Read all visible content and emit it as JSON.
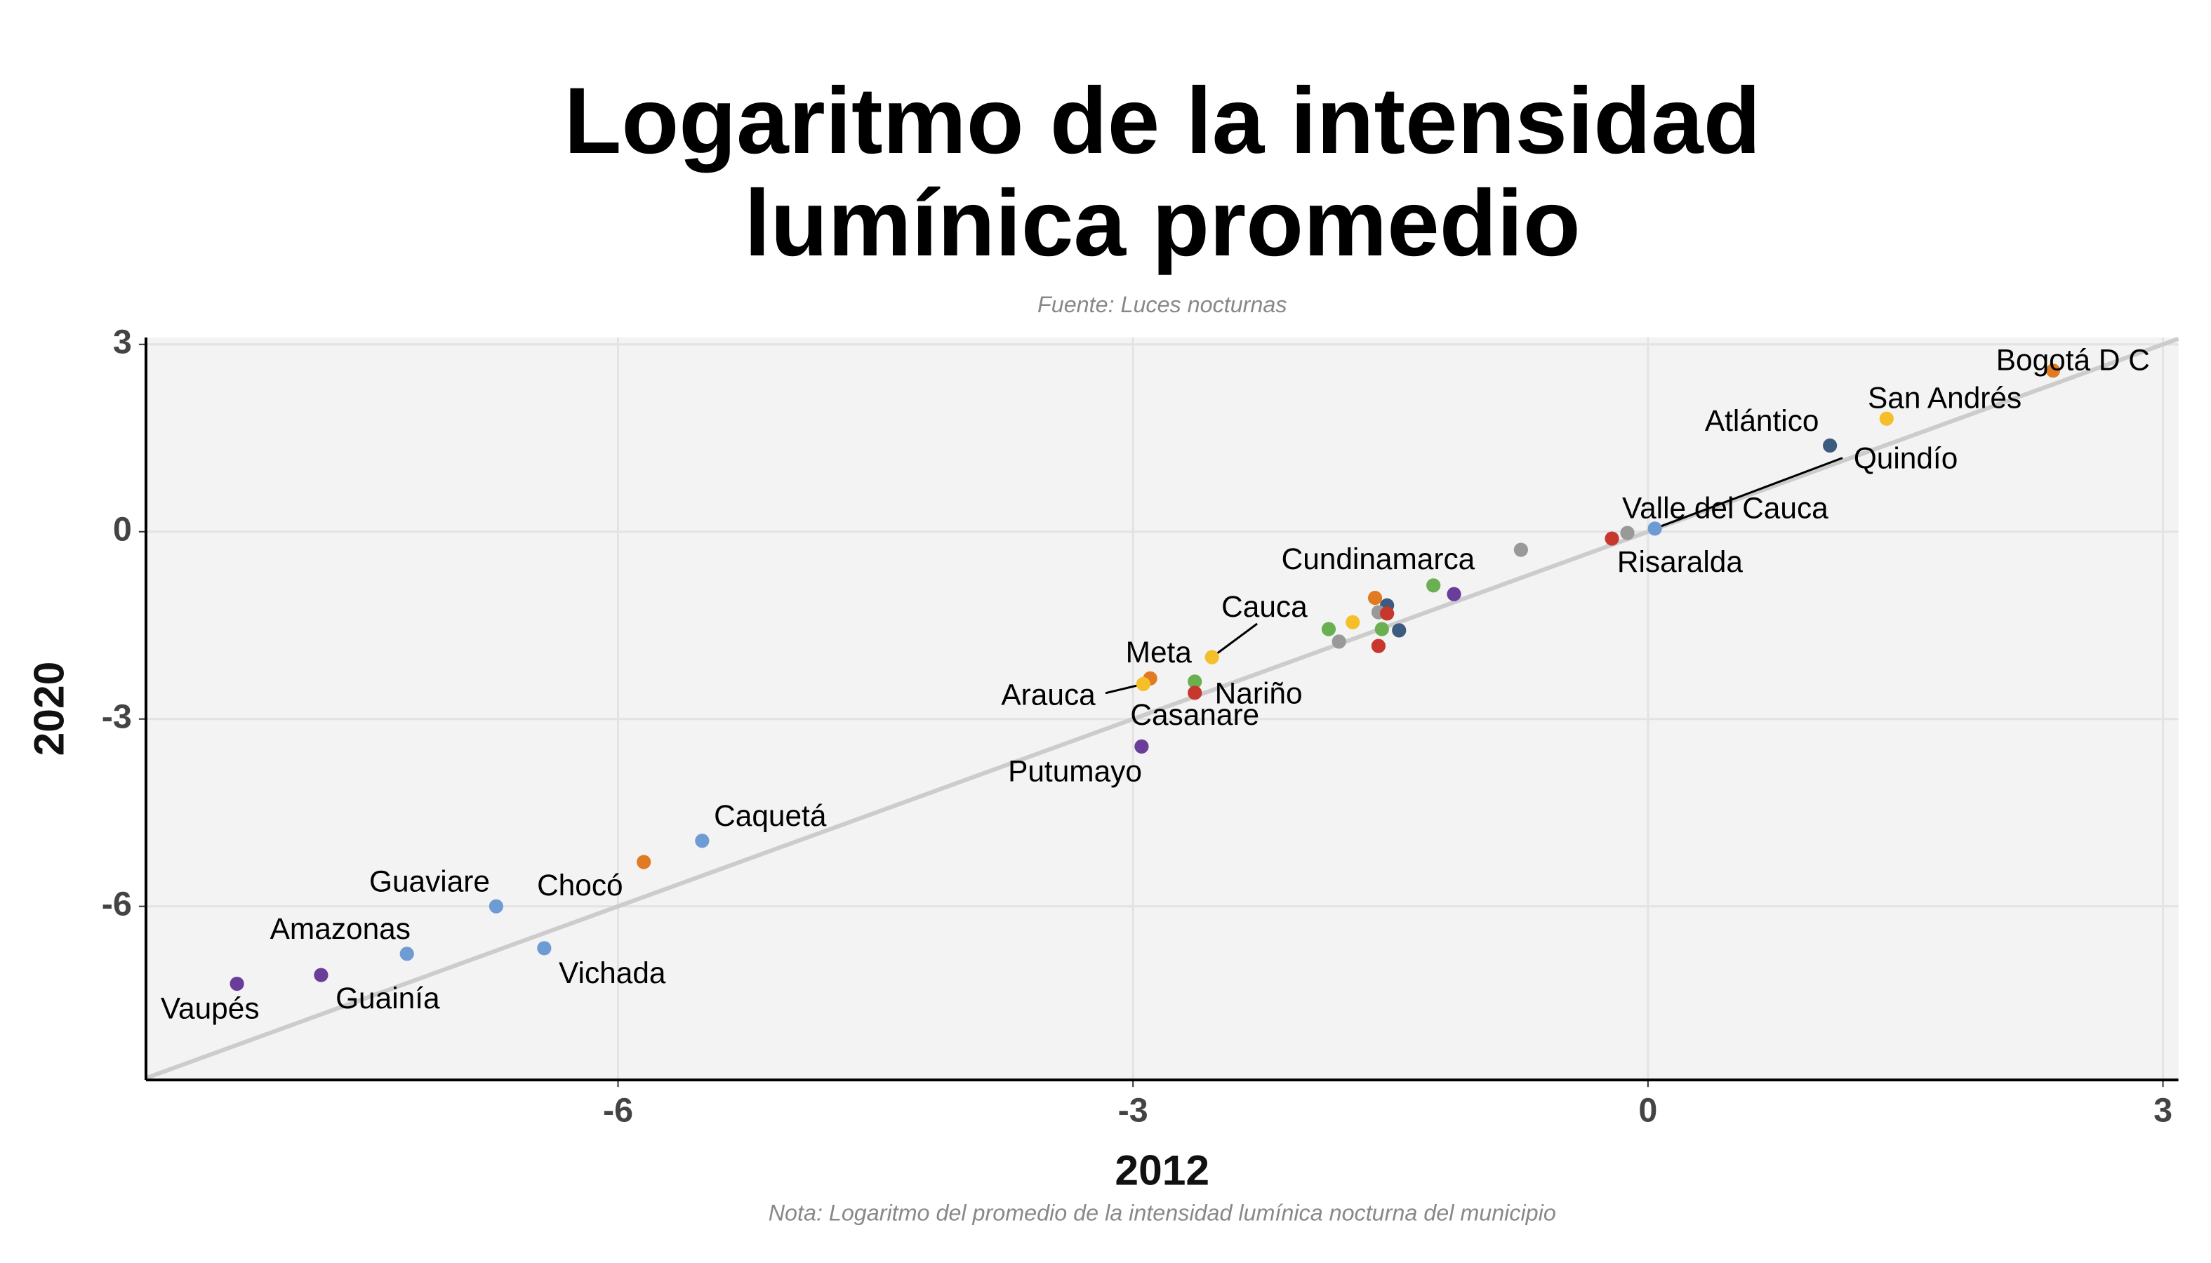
{
  "chart_data": {
    "type": "scatter",
    "title": "Logaritmo de la intensidad lumínica promedio",
    "subtitle": "Fuente: Luces nocturnas",
    "caption": "Nota: Logaritmo del promedio de la intensidad lumínica nocturna del municipio",
    "x_label": "2012",
    "y_label": "2020",
    "xlim": [
      -8.75,
      3.09
    ],
    "ylim": [
      -8.78,
      3.11
    ],
    "xticks": [
      -6,
      -3,
      0,
      3
    ],
    "yticks": [
      -6,
      -3,
      0,
      3
    ],
    "grid": true,
    "labels": [
      "Bogotá D C",
      "San Andrés",
      "Atlántico",
      "Quindío",
      "Valle del Cauca",
      "Risaralda",
      null,
      "Cundinamarca",
      null,
      null,
      null,
      null,
      null,
      null,
      null,
      null,
      null,
      null,
      null,
      "Cauca",
      "Nariño",
      "Casanare",
      "Meta",
      "Arauca",
      "Putumayo",
      "Caquetá",
      "Chocó",
      "Guaviare",
      "Vichada",
      "Amazonas",
      "Guainía",
      "Vaupés"
    ],
    "x": [
      2.36,
      1.39,
      1.06,
      0.04,
      -0.12,
      -0.21,
      -0.74,
      -1.25,
      -1.13,
      -1.59,
      -1.52,
      -1.57,
      -1.52,
      -1.45,
      -1.55,
      -1.72,
      -1.86,
      -1.8,
      -1.57,
      -2.54,
      -2.64,
      -2.64,
      -2.9,
      -2.94,
      -2.95,
      -5.51,
      -5.85,
      -6.71,
      -6.43,
      -7.23,
      -7.73,
      -8.22
    ],
    "y": [
      2.58,
      1.81,
      1.38,
      0.05,
      -0.02,
      -0.11,
      -0.29,
      -0.86,
      -1.0,
      -1.06,
      -1.18,
      -1.29,
      -1.31,
      -1.58,
      -1.56,
      -1.45,
      -1.56,
      -1.76,
      -1.83,
      -2.01,
      -2.4,
      -2.58,
      -2.35,
      -2.44,
      -3.44,
      -4.95,
      -5.29,
      -6.0,
      -6.67,
      -6.76,
      -7.1,
      -7.24
    ],
    "colors": [
      "#e07b24",
      "#f5bf2a",
      "#3d5a80",
      "#6f9bd4",
      "#999999",
      "#c8372d",
      "#999999",
      "#6aaf50",
      "#6a3d9a",
      "#e07b24",
      "#3d5a80",
      "#999999",
      "#c8372d",
      "#3d5a80",
      "#6aaf50",
      "#f5bf2a",
      "#6aaf50",
      "#999999",
      "#c8372d",
      "#f5bf2a",
      "#6aaf50",
      "#c8372d",
      "#e07b24",
      "#f5bf2a",
      "#6a3d9a",
      "#6f9bd4",
      "#e07b24",
      "#6f9bd4",
      "#6f9bd4",
      "#6f9bd4",
      "#6a3d9a",
      "#6a3d9a"
    ]
  }
}
